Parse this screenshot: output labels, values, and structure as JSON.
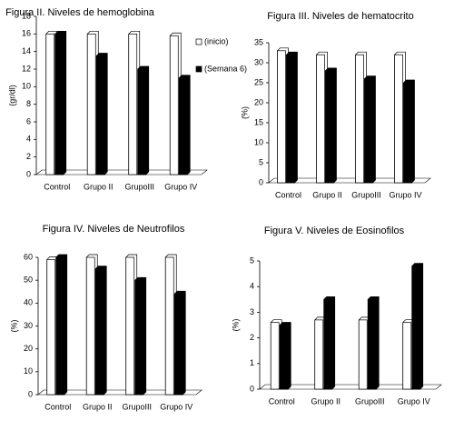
{
  "chart_data": [
    {
      "type": "bar",
      "title": "Figura II. Niveles de hemoglobina",
      "y_label": "(gr/dl)",
      "categories": [
        "Control",
        "Grupo II",
        "GrupoIII",
        "Grupo IV"
      ],
      "series": [
        {
          "name": "(inicio)",
          "color": "#ffffff",
          "values": [
            16,
            16,
            16,
            15.8
          ]
        },
        {
          "name": "(Semana 6)",
          "color": "#000000",
          "values": [
            16,
            13.5,
            12,
            11
          ]
        }
      ],
      "ylim": [
        0,
        18
      ],
      "yticks": [
        0,
        2,
        4,
        6,
        8,
        10,
        12,
        14,
        16,
        18
      ],
      "legend": "right"
    },
    {
      "type": "bar",
      "title": "Figura III. Niveles de hematocrito",
      "y_label": "(%)",
      "categories": [
        "Control",
        "Grupo II",
        "GrupoIII",
        "Grupo IV"
      ],
      "series": [
        {
          "color": "#ffffff",
          "values": [
            33,
            32,
            32,
            32
          ]
        },
        {
          "color": "#000000",
          "values": [
            32,
            28,
            26,
            25
          ]
        }
      ],
      "ylim": [
        0,
        35
      ],
      "yticks": [
        0,
        5,
        10,
        15,
        20,
        25,
        30,
        35
      ]
    },
    {
      "type": "bar",
      "title": "Figura IV. Niveles de Neutrofilos",
      "y_label": "(%)",
      "categories": [
        "Control",
        "Grupo II",
        "GrupoIII",
        "Grupo IV"
      ],
      "series": [
        {
          "color": "#ffffff",
          "values": [
            59,
            60,
            60,
            60
          ]
        },
        {
          "color": "#000000",
          "values": [
            60,
            55,
            50,
            44
          ]
        }
      ],
      "ylim": [
        0,
        60
      ],
      "yticks": [
        0,
        10,
        20,
        30,
        40,
        50,
        60
      ]
    },
    {
      "type": "bar",
      "title": "Figura V. Niveles de Eosinofilos",
      "y_label": "(%)",
      "categories": [
        "Control",
        "Grupo II",
        "GrupoIII",
        "Grupo IV"
      ],
      "series": [
        {
          "color": "#ffffff",
          "values": [
            2.6,
            2.7,
            2.7,
            2.6
          ]
        },
        {
          "color": "#000000",
          "values": [
            2.5,
            3.5,
            3.5,
            4.8
          ]
        }
      ],
      "ylim": [
        0,
        5
      ],
      "yticks": [
        0,
        1,
        2,
        3,
        4,
        5
      ]
    }
  ]
}
